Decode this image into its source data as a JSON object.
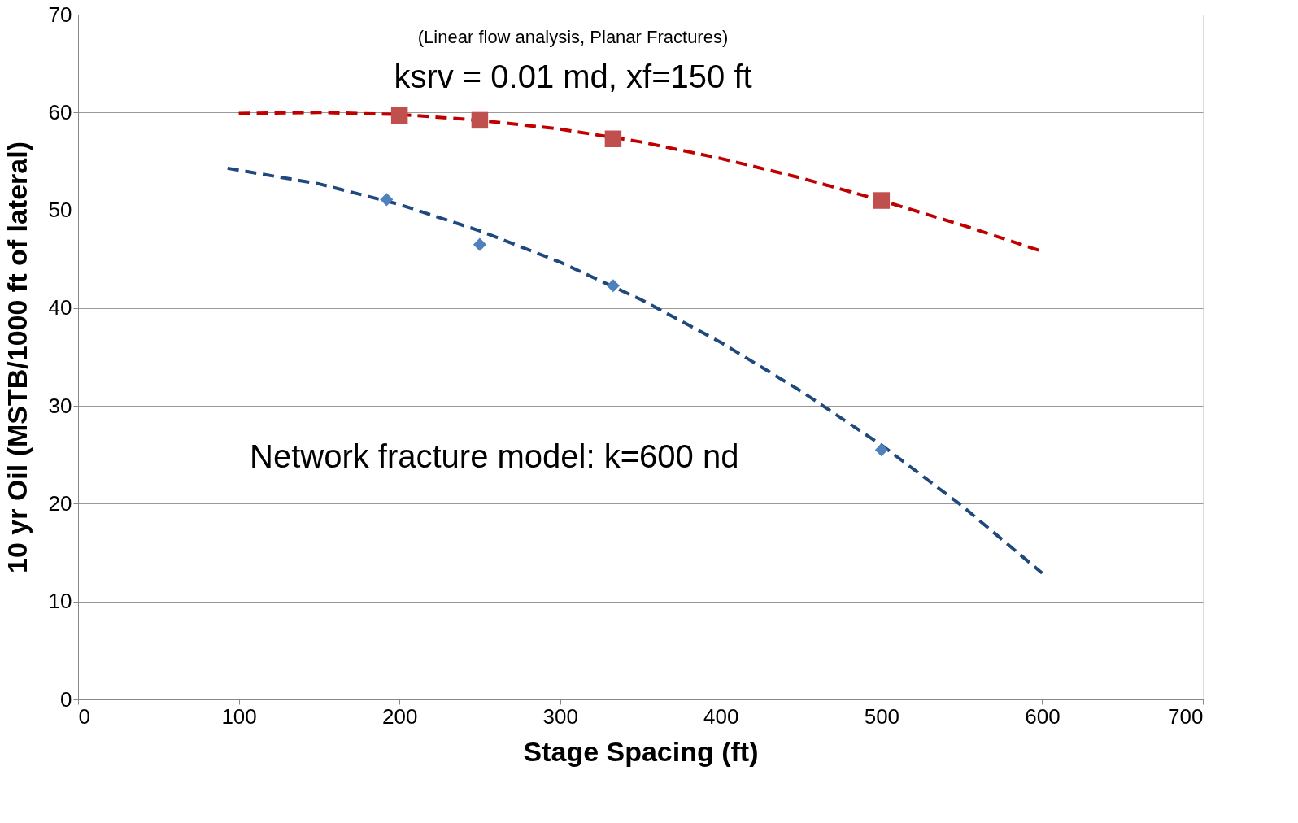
{
  "chart_data": {
    "type": "scatter",
    "xlabel": "Stage Spacing (ft)",
    "ylabel": "10 yr Oil (MSTB/1000 ft of lateral)",
    "xlim": [
      0,
      700
    ],
    "xticks": [
      0,
      100,
      200,
      300,
      400,
      500,
      600,
      700
    ],
    "ylim": [
      0,
      70
    ],
    "yticks": [
      0,
      10,
      20,
      30,
      40,
      50,
      60,
      70
    ],
    "grid": "y",
    "annotations": [
      "(Linear flow analysis, Planar Fractures)",
      "ksrv = 0.01 md, xf=150 ft",
      "Network fracture model: k=600 nd"
    ],
    "series": [
      {
        "type": "line",
        "color": "#c00000",
        "line_style": "dashed",
        "x": [
          100,
          150,
          200,
          250,
          300,
          350,
          400,
          450,
          500,
          550,
          600
        ],
        "values": [
          59.9,
          60.0,
          59.8,
          59.2,
          58.3,
          57.0,
          55.3,
          53.3,
          51.0,
          48.5,
          45.8
        ]
      },
      {
        "type": "line",
        "color": "#1f497d",
        "line_style": "dashed",
        "x": [
          93,
          150,
          200,
          250,
          300,
          350,
          400,
          450,
          500,
          550,
          600
        ],
        "values": [
          54.3,
          52.7,
          50.6,
          47.9,
          44.7,
          40.9,
          36.5,
          31.5,
          26.0,
          19.8,
          12.9
        ]
      },
      {
        "color": "#c0504d",
        "marker": "square",
        "x": [
          200,
          250,
          333,
          500
        ],
        "values": [
          59.7,
          59.2,
          57.3,
          51.0
        ]
      },
      {
        "color": "#4f81bd",
        "marker": "diamond",
        "x": [
          192,
          250,
          333,
          500
        ],
        "values": [
          51.1,
          46.5,
          42.3,
          25.5
        ]
      }
    ]
  }
}
